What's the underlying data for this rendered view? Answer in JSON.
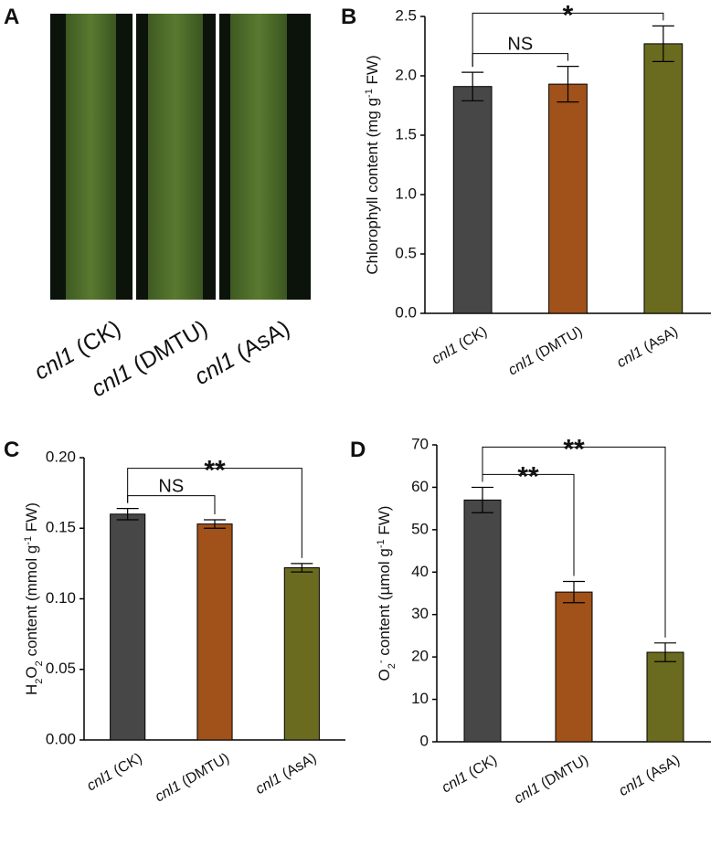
{
  "image_panel": {
    "panel": "A",
    "labels": [
      "cnl1 (CK)",
      "cnl1 (DMTU)",
      "cnl1 (AsA)"
    ]
  },
  "chart_data": [
    {
      "type": "bar",
      "panel": "B",
      "ylabel": [
        {
          "text": "Chlorophyll content (mg g"
        },
        {
          "text": "-1",
          "baseline": "super"
        },
        {
          "text": " FW)"
        }
      ],
      "categories": [
        "cnl1 (CK)",
        "cnl1 (DMTU)",
        "cnl1 (AsA)"
      ],
      "values": [
        1.91,
        1.93,
        2.27
      ],
      "errors": [
        0.12,
        0.15,
        0.15
      ],
      "colors": [
        "#474747",
        "#a0521a",
        "#6b6b1f"
      ],
      "ylim": [
        0,
        2.5
      ],
      "yticks": [
        {
          "value": 0,
          "label": "0.0"
        },
        0.5,
        {
          "value": 1,
          "label": "1.0"
        },
        1.5,
        {
          "value": 2,
          "label": "2.0"
        },
        2.5
      ],
      "brackets": [
        {
          "from": 0,
          "to": 1,
          "label": "NS"
        },
        {
          "from": 0,
          "to": 2,
          "label": "*"
        }
      ]
    },
    {
      "type": "bar",
      "panel": "C",
      "ylabel": [
        {
          "text": "H"
        },
        {
          "text": "2",
          "baseline": "sub"
        },
        {
          "text": "O"
        },
        {
          "text": "2",
          "baseline": "sub"
        },
        {
          "text": " content (mmol g"
        },
        {
          "text": "-1",
          "baseline": "super"
        },
        {
          "text": " FW)"
        }
      ],
      "categories": [
        "cnl1 (CK)",
        "cnl1 (DMTU)",
        "cnl1 (AsA)"
      ],
      "values": [
        0.16,
        0.153,
        0.122
      ],
      "errors": [
        0.004,
        0.003,
        0.003
      ],
      "colors": [
        "#474747",
        "#a0521a",
        "#6b6b1f"
      ],
      "ylim": [
        0,
        0.2
      ],
      "yticks": [
        {
          "value": 0,
          "label": "0.00"
        },
        0.05,
        {
          "value": 0.1,
          "label": "0.10"
        },
        0.15,
        {
          "value": 0.2,
          "label": "0.20"
        }
      ],
      "brackets": [
        {
          "from": 0,
          "to": 1,
          "label": "NS"
        },
        {
          "from": 0,
          "to": 2,
          "label": "**"
        }
      ]
    },
    {
      "type": "bar",
      "panel": "D",
      "ylabel": [
        {
          "text": "O"
        },
        {
          "text": "2",
          "baseline": "sub"
        },
        {
          "text": "-",
          "baseline": "super"
        },
        {
          "text": " content (µmol g"
        },
        {
          "text": "-1",
          "baseline": "super"
        },
        {
          "text": " FW)"
        }
      ],
      "categories": [
        "cnl1 (CK)",
        "cnl1 (DMTU)",
        "cnl1 (AsA)"
      ],
      "values": [
        57,
        35.3,
        21.1
      ],
      "errors": [
        3,
        2.5,
        2.2
      ],
      "colors": [
        "#474747",
        "#a0521a",
        "#6b6b1f"
      ],
      "ylim": [
        0,
        70
      ],
      "yticks": [
        0,
        10,
        20,
        30,
        40,
        50,
        60,
        70
      ],
      "brackets": [
        {
          "from": 0,
          "to": 1,
          "label": "**"
        },
        {
          "from": 0,
          "to": 2,
          "label": "**"
        }
      ]
    }
  ]
}
